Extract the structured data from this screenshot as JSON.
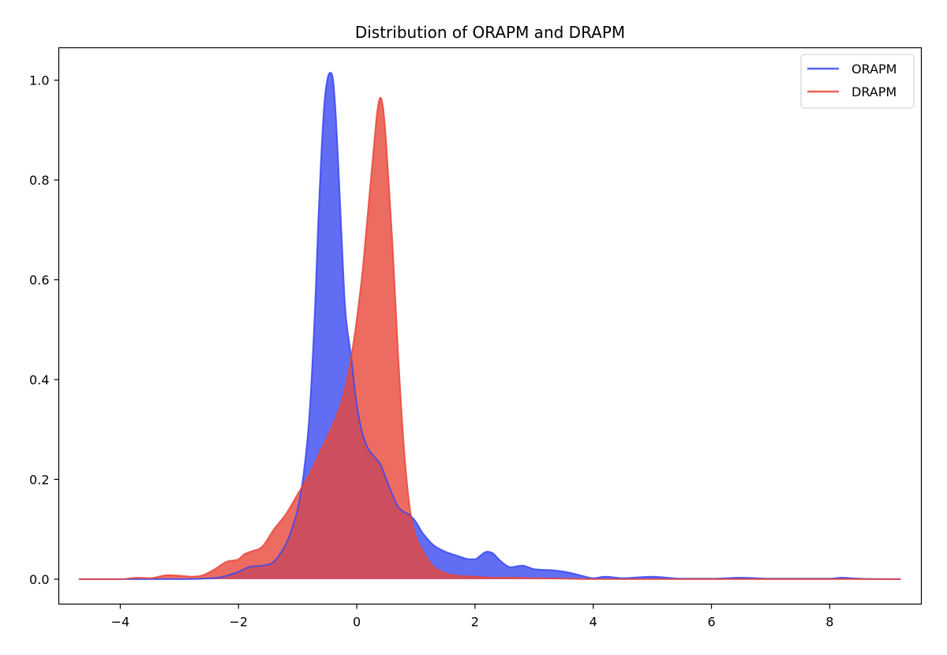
{
  "chart_data": {
    "type": "area",
    "title": "Distribution of ORAPM and DRAPM",
    "xlabel": "",
    "ylabel": "",
    "xlim": [
      -5.04,
      9.55
    ],
    "ylim": [
      -0.05,
      1.065
    ],
    "x_ticks": [
      -4,
      -2,
      0,
      2,
      4,
      6,
      8
    ],
    "x_tick_labels": [
      "−4",
      "−2",
      "0",
      "2",
      "4",
      "6",
      "8"
    ],
    "y_ticks": [
      0.0,
      0.2,
      0.4,
      0.6,
      0.8,
      1.0
    ],
    "y_tick_labels": [
      "0.0",
      "0.2",
      "0.4",
      "0.6",
      "0.8",
      "1.0"
    ],
    "grid": false,
    "legend_position": "top-right",
    "series": [
      {
        "name": "ORAPM",
        "color": "#3a48f0",
        "x": [
          -4.7,
          -4.0,
          -3.7,
          -3.4,
          -3.0,
          -2.6,
          -2.3,
          -2.0,
          -1.8,
          -1.6,
          -1.4,
          -1.3,
          -1.2,
          -1.1,
          -1.0,
          -0.9,
          -0.8,
          -0.7,
          -0.65,
          -0.6,
          -0.55,
          -0.5,
          -0.45,
          -0.4,
          -0.35,
          -0.3,
          -0.25,
          -0.2,
          -0.1,
          0.0,
          0.1,
          0.2,
          0.3,
          0.4,
          0.5,
          0.6,
          0.7,
          0.8,
          0.9,
          1.0,
          1.1,
          1.2,
          1.3,
          1.5,
          1.7,
          1.9,
          2.0,
          2.1,
          2.2,
          2.3,
          2.4,
          2.5,
          2.6,
          2.8,
          3.0,
          3.3,
          3.6,
          3.8,
          4.0,
          4.2,
          4.5,
          5.0,
          5.5,
          6.0,
          6.5,
          7.0,
          7.5,
          8.0,
          8.2,
          8.5,
          9.2
        ],
        "y": [
          0.0,
          0.0,
          0.0,
          0.0,
          0.0,
          0.001,
          0.004,
          0.015,
          0.025,
          0.027,
          0.035,
          0.05,
          0.07,
          0.1,
          0.14,
          0.21,
          0.33,
          0.56,
          0.72,
          0.85,
          0.95,
          1.0,
          1.015,
          1.0,
          0.92,
          0.8,
          0.67,
          0.55,
          0.45,
          0.35,
          0.29,
          0.26,
          0.245,
          0.23,
          0.2,
          0.17,
          0.145,
          0.135,
          0.128,
          0.115,
          0.095,
          0.08,
          0.068,
          0.055,
          0.047,
          0.04,
          0.04,
          0.048,
          0.055,
          0.052,
          0.04,
          0.03,
          0.024,
          0.027,
          0.02,
          0.018,
          0.013,
          0.007,
          0.002,
          0.005,
          0.002,
          0.005,
          0.001,
          0.001,
          0.003,
          0.001,
          0.001,
          0.001,
          0.003,
          0.001,
          0.0
        ]
      },
      {
        "name": "DRAPM",
        "color": "#e8473a",
        "x": [
          -4.7,
          -4.0,
          -3.7,
          -3.5,
          -3.2,
          -3.0,
          -2.8,
          -2.6,
          -2.4,
          -2.2,
          -2.0,
          -1.9,
          -1.8,
          -1.6,
          -1.4,
          -1.2,
          -1.0,
          -0.8,
          -0.6,
          -0.4,
          -0.2,
          -0.1,
          0.0,
          0.1,
          0.2,
          0.3,
          0.35,
          0.4,
          0.45,
          0.5,
          0.6,
          0.7,
          0.8,
          0.9,
          1.0,
          1.1,
          1.2,
          1.3,
          1.5,
          1.7,
          2.0,
          2.3,
          2.6,
          3.0,
          3.5,
          4.0,
          5.0,
          6.0,
          7.0,
          8.0,
          9.2
        ],
        "y": [
          0.0,
          0.0,
          0.003,
          0.002,
          0.008,
          0.007,
          0.005,
          0.008,
          0.02,
          0.035,
          0.04,
          0.05,
          0.055,
          0.065,
          0.1,
          0.13,
          0.17,
          0.21,
          0.26,
          0.31,
          0.38,
          0.44,
          0.52,
          0.62,
          0.75,
          0.88,
          0.94,
          0.965,
          0.94,
          0.87,
          0.68,
          0.45,
          0.26,
          0.14,
          0.085,
          0.06,
          0.04,
          0.025,
          0.012,
          0.007,
          0.005,
          0.003,
          0.003,
          0.002,
          0.001,
          0.0,
          0.0,
          0.0,
          0.0,
          0.0,
          0.0
        ]
      }
    ]
  }
}
